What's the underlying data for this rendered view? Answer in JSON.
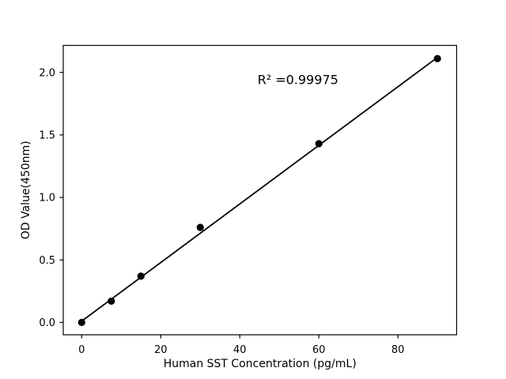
{
  "chart_data": {
    "type": "scatter",
    "title": "",
    "xlabel": "Human SST Concentration (pg/mL)",
    "ylabel": "OD Value(450nm)",
    "series": [
      {
        "name": "standard-points",
        "type": "scatter",
        "x": [
          0,
          7.5,
          15,
          30,
          60,
          90
        ],
        "y": [
          0.0,
          0.17,
          0.37,
          0.76,
          1.43,
          2.11
        ]
      },
      {
        "name": "linear-fit-line",
        "type": "line",
        "x": [
          0,
          90
        ],
        "y": [
          0.01,
          2.12
        ]
      }
    ],
    "annotation": {
      "text": "R² =0.99975",
      "x": 54.7,
      "y": 1.943
    },
    "x_ticks": {
      "values": [
        0,
        20,
        40,
        60,
        80
      ],
      "labels": [
        "0",
        "20",
        "40",
        "60",
        "80"
      ]
    },
    "y_ticks": {
      "values": [
        0,
        0.5,
        1.0,
        1.5,
        2.0
      ],
      "labels": [
        "0.0",
        "0.5",
        "1.0",
        "1.5",
        "2.0"
      ]
    },
    "xlim": [
      -4.66,
      94.84
    ],
    "ylim": [
      -0.099,
      2.216
    ],
    "grid": false,
    "legend": null,
    "colors": {
      "marker": "#000000",
      "line": "#000000",
      "text": "#000000",
      "axis": "#000000",
      "background": "#ffffff"
    }
  }
}
